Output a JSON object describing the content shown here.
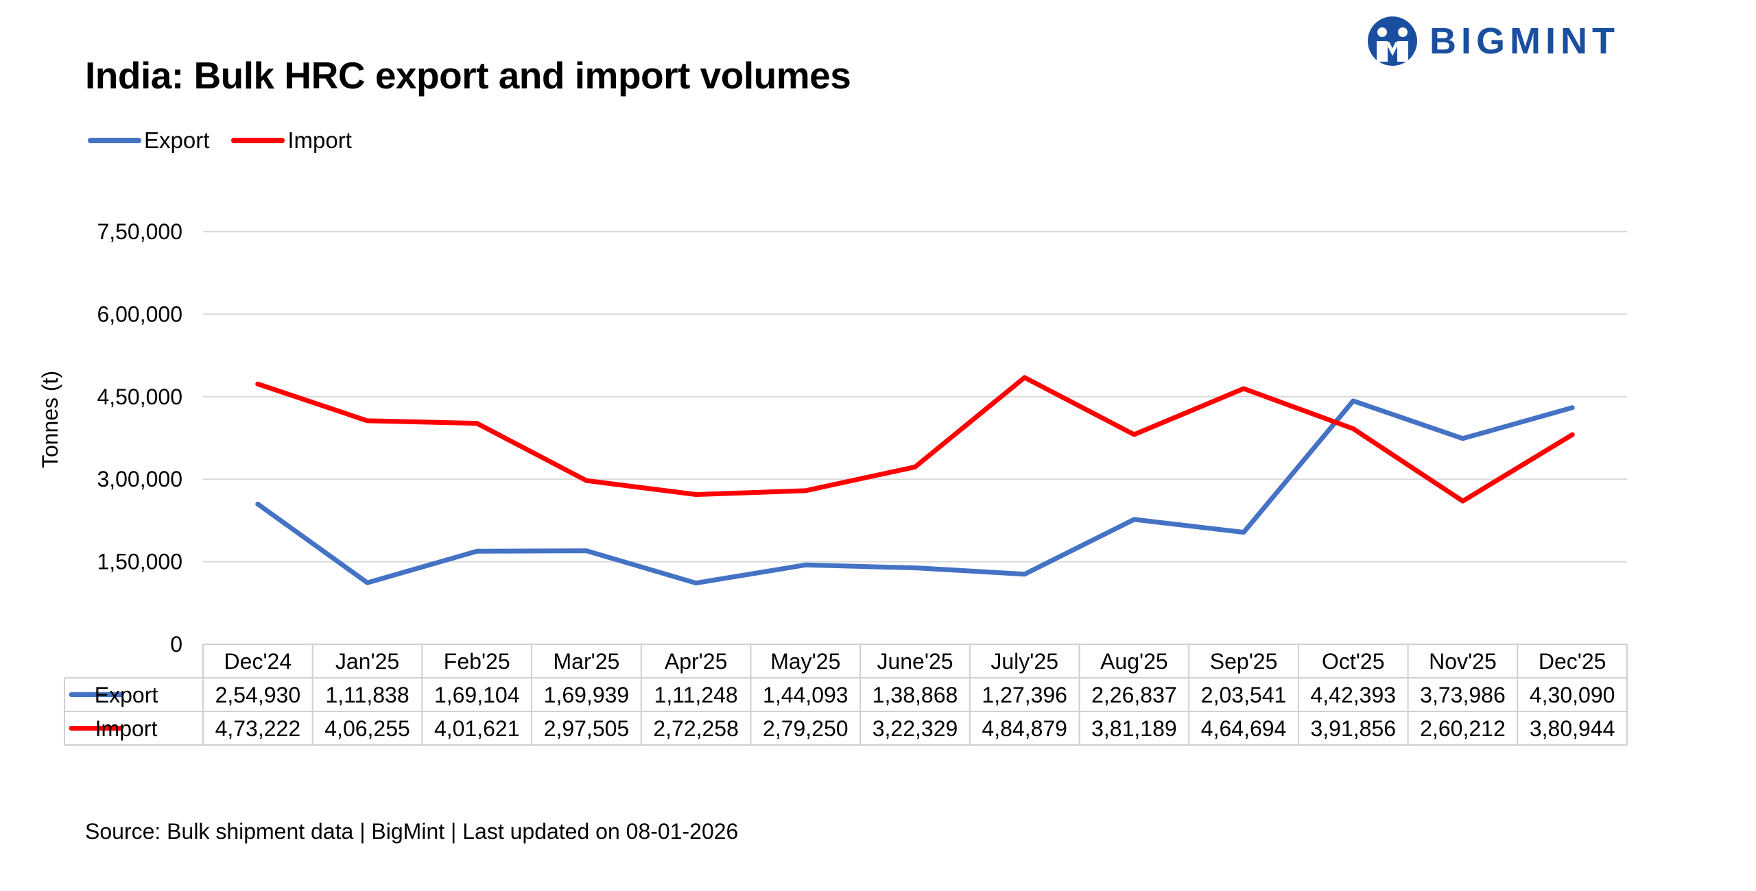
{
  "header": {
    "title": "India: Bulk HRC export and import volumes",
    "logo_text": "BIGMINT"
  },
  "footer": {
    "source": "Source: Bulk shipment data | BigMint | Last updated on 08-01-2026"
  },
  "chart_data": {
    "type": "line",
    "title": "India: Bulk HRC export and import volumes",
    "xlabel": "",
    "ylabel": "Tonnes (t)",
    "ylim": [
      0,
      750000
    ],
    "yticks": [
      0,
      150000,
      300000,
      450000,
      600000,
      750000
    ],
    "ytick_labels": [
      "0",
      "1,50,000",
      "3,00,000",
      "4,50,000",
      "6,00,000",
      "7,50,000"
    ],
    "grid": true,
    "legend_position": "top-left",
    "categories": [
      "Dec'24",
      "Jan'25",
      "Feb'25",
      "Mar'25",
      "Apr'25",
      "May'25",
      "June'25",
      "July'25",
      "Aug'25",
      "Sep'25",
      "Oct'25",
      "Nov'25",
      "Dec'25"
    ],
    "series": [
      {
        "name": "Export",
        "color": "#4472c4",
        "values": [
          254930,
          111838,
          169104,
          169939,
          111248,
          144093,
          138868,
          127396,
          226837,
          203541,
          442393,
          373986,
          430090
        ],
        "labels": [
          "2,54,930",
          "1,11,838",
          "1,69,104",
          "1,69,939",
          "1,11,248",
          "1,44,093",
          "1,38,868",
          "1,27,396",
          "2,26,837",
          "2,03,541",
          "4,42,393",
          "3,73,986",
          "4,30,090"
        ]
      },
      {
        "name": "Import",
        "color": "#ff0000",
        "values": [
          473222,
          406255,
          401621,
          297505,
          272258,
          279250,
          322329,
          484879,
          381189,
          464694,
          391856,
          260212,
          380944
        ],
        "labels": [
          "4,73,222",
          "4,06,255",
          "4,01,621",
          "2,97,505",
          "2,72,258",
          "2,79,250",
          "3,22,329",
          "4,84,879",
          "3,81,189",
          "4,64,694",
          "3,91,856",
          "2,60,212",
          "3,80,944"
        ]
      }
    ],
    "data_table": true
  }
}
